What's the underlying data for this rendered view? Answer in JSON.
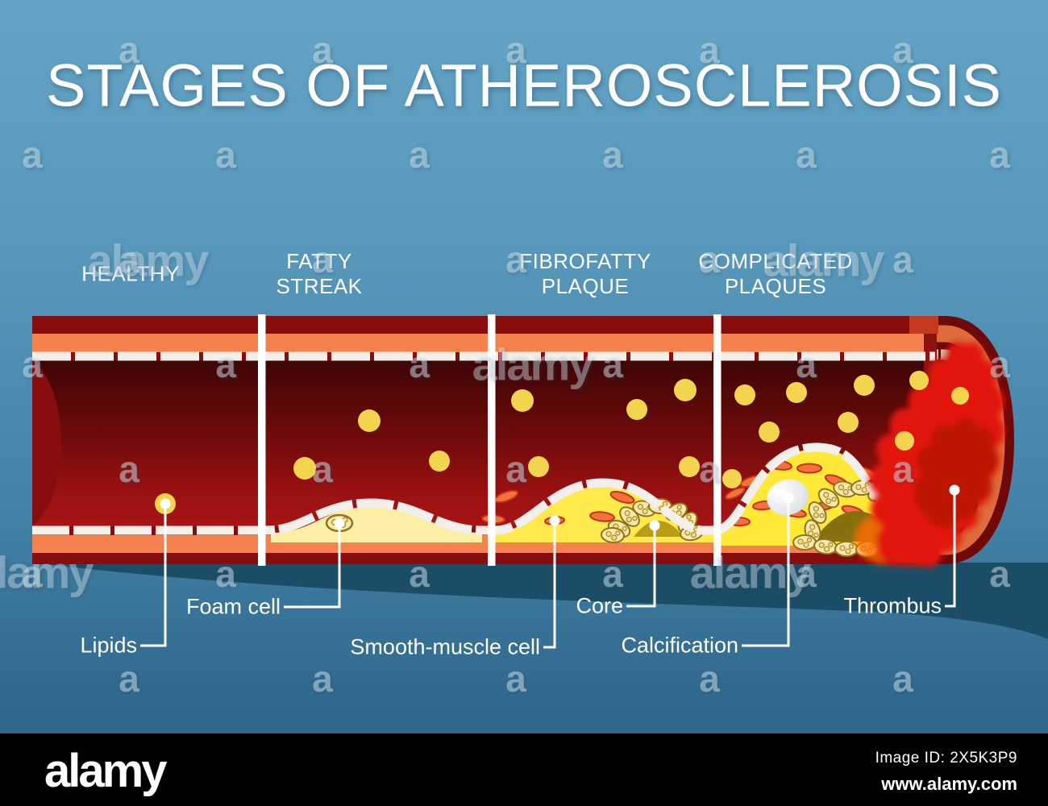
{
  "title": "STAGES OF ATHEROSCLEROSIS",
  "stages": [
    {
      "line1": "HEALTHY",
      "line2": ""
    },
    {
      "line1": "FATTY",
      "line2": "STREAK"
    },
    {
      "line1": "FIBROFATTY",
      "line2": "PLAQUE"
    },
    {
      "line1": "COMPLICATED",
      "line2": "PLAQUES"
    }
  ],
  "annotations": [
    {
      "label": "Lipids"
    },
    {
      "label": "Foam cell"
    },
    {
      "label": "Smooth-muscle cell"
    },
    {
      "label": "Core"
    },
    {
      "label": "Calcification"
    },
    {
      "label": "Thrombus"
    }
  ],
  "watermark": {
    "letter": "a",
    "word": "alamy"
  },
  "footer": {
    "logo": "alamy",
    "image_id": "Image ID: 2X5K3P9",
    "url": "www.alamy.com"
  },
  "colors": {
    "background_top": "#64A3C4",
    "background_bottom": "#2B6284",
    "artery_wall_dark_red": "#870D0F",
    "cap_outer_maroon": "#6E0909",
    "media_orange": "#F5814E",
    "cap_orange": "#DD6B3B",
    "endothelium_white": "#F3F0EB",
    "brick_band_tan": "#D5BFA8",
    "lumen_dark": "#3E0505",
    "lumen_bright": "#A81414",
    "lipid_yellow": "#F2D44F",
    "fatty_streak_cream": "#FAEFA5",
    "plaque_yellow": "#FFE94D",
    "muscle_cell_orange": "#F4713D",
    "core_olive": "#86700E",
    "calcification_gray": "#E9EBEC",
    "thrombus_red": "#E2180A",
    "shadow_teal": "#1C4D66",
    "divider_white": "#FFFFFF",
    "text_white": "#FFFFFF",
    "footer_black": "#000000"
  }
}
